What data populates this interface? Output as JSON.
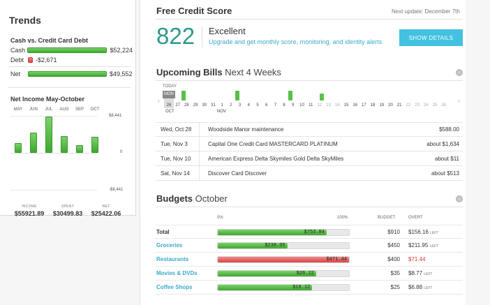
{
  "trends": {
    "title": "Trends",
    "debt_section": "Cash vs. Credit Card Debt",
    "cash_label": "Cash",
    "cash_value": "$52,224",
    "debt_label": "Debt",
    "debt_value": "-$2,671",
    "net_label": "Net",
    "net_value": "$49,552",
    "income_section": "Net Income May-October",
    "months": [
      "MAY",
      "JUN",
      "JUL",
      "AUG",
      "SEP",
      "OCT"
    ],
    "ymax": "$8,441",
    "yzero": "0",
    "ymin": "-$8,441",
    "stats": [
      {
        "label": "INCOME",
        "value": "$55921.89"
      },
      {
        "label": "SPENT",
        "value": "$30499.83"
      },
      {
        "label": "NET",
        "value": "$25422.06"
      }
    ]
  },
  "credit": {
    "title": "Free Credit Score",
    "next_update": "Next update: December 7th",
    "score": "822",
    "rating": "Excellent",
    "upgrade_text": "Upgrade and get monthly score, monitoring, and identity alerts",
    "button": "SHOW DETAILS"
  },
  "bills": {
    "title": "Upcoming Bills",
    "subtitle": "Next 4 Weeks",
    "today_label": "TODAY",
    "today_day": "MON",
    "oct_label": "OCT",
    "nov_label": "NOV",
    "days": [
      "26",
      "27",
      "28",
      "29",
      "30",
      "31",
      "1",
      "2",
      "3",
      "4",
      "5",
      "6",
      "7",
      "8",
      "9",
      "10",
      "11",
      "12",
      "13",
      "14",
      "15",
      "16",
      "17",
      "18",
      "19",
      "20",
      "21",
      "22",
      "23",
      "24",
      "25",
      "26"
    ],
    "rows": [
      {
        "date": "Wed, Oct 28",
        "name": "Woodside Manor maintenance",
        "amount": "$588.00"
      },
      {
        "date": "Tue, Nov 3",
        "name": "Capital One Credit Card MASTERCARD PLATINUM",
        "amount": "about $1,634"
      },
      {
        "date": "Tue, Nov 10",
        "name": "American Express Delta Skymiles Gold Delta SkyMiles",
        "amount": "about $11"
      },
      {
        "date": "Sat, Nov 14",
        "name": "Discover Card Discover",
        "amount": "about $513"
      }
    ]
  },
  "budgets": {
    "title": "Budgets",
    "subtitle": "October",
    "col_zero": "0%",
    "col_hundred": "100%",
    "col_budget": "BUDGET",
    "col_overt": "OVERT",
    "rows": [
      {
        "name": "Total",
        "spent": "$753.84",
        "budget": "$910",
        "over": "$156.16",
        "over_suffix": "LEFT",
        "fill": 0.83,
        "status": "ok"
      },
      {
        "name": "Groceries",
        "spent": "$238.05",
        "budget": "$450",
        "over": "$211.95",
        "over_suffix": "LEFT",
        "fill": 0.53,
        "status": "ok"
      },
      {
        "name": "Restaurants",
        "spent": "$471.44",
        "budget": "$400",
        "over": "$71.44",
        "over_suffix": "",
        "fill": 1.0,
        "status": "over"
      },
      {
        "name": "Movies & DVDs",
        "spent": "$26.22",
        "budget": "$35",
        "over": "$8.77",
        "over_suffix": "LEFT",
        "fill": 0.75,
        "status": "ok"
      },
      {
        "name": "Coffee Shops",
        "spent": "$18.12",
        "budget": "$25",
        "over": "$6.88",
        "over_suffix": "LEFT",
        "fill": 0.72,
        "status": "ok"
      }
    ]
  }
}
